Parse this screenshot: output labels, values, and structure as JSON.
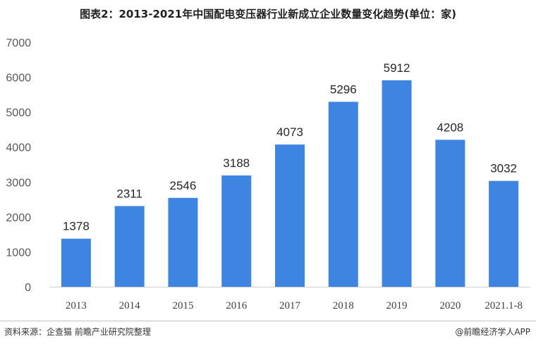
{
  "chart_data": {
    "type": "bar",
    "title": "图表2：2013-2021年中国配电变压器行业新成立企业数量变化趋势(单位：家)",
    "categories": [
      "2013",
      "2014",
      "2015",
      "2016",
      "2017",
      "2018",
      "2019",
      "2020",
      "2021.1-8"
    ],
    "values": [
      1378,
      2311,
      2546,
      3188,
      4073,
      5296,
      5912,
      4208,
      3032
    ],
    "ylim": [
      0,
      7000
    ],
    "yticks": [
      0,
      1000,
      2000,
      3000,
      4000,
      5000,
      6000,
      7000
    ],
    "bar_color": "#3d85e0",
    "grid": false,
    "legend": "none"
  },
  "footer": {
    "source": "资料来源：企查猫 前瞻产业研究院整理",
    "brand": "@前瞻经济学人APP"
  }
}
